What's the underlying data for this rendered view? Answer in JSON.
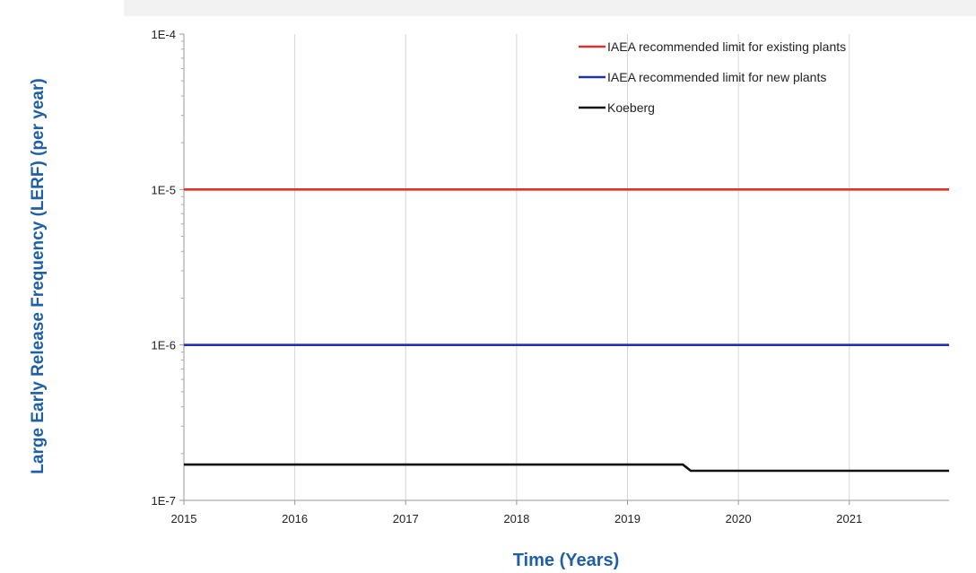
{
  "chart_data": {
    "type": "line",
    "ylabel": "Large Early Release Frequency (LERF)  (per year)",
    "xlabel": "Time (Years)",
    "y_scale": "log",
    "ylim": [
      1e-07,
      0.0001
    ],
    "xlim": [
      2015,
      2021.9
    ],
    "y_ticks": [
      {
        "value": 0.0001,
        "label": "1E-4"
      },
      {
        "value": 1e-05,
        "label": "1E-5"
      },
      {
        "value": 1e-06,
        "label": "1E-6"
      },
      {
        "value": 1e-07,
        "label": "1E-7"
      }
    ],
    "x_ticks": [
      {
        "value": 2015,
        "label": "2015"
      },
      {
        "value": 2016,
        "label": "2016"
      },
      {
        "value": 2017,
        "label": "2017"
      },
      {
        "value": 2018,
        "label": "2018"
      },
      {
        "value": 2019,
        "label": "2019"
      },
      {
        "value": 2020,
        "label": "2020"
      },
      {
        "value": 2021,
        "label": "2021"
      }
    ],
    "legend_position": "top-right",
    "grid": "vertical lines at year ticks",
    "series": [
      {
        "name": "IAEA recommended limit for existing plants",
        "color": "#e03030",
        "points": [
          [
            2015,
            1e-05
          ],
          [
            2021.9,
            1e-05
          ]
        ]
      },
      {
        "name": "IAEA recommended limit for new plants",
        "color": "#2233aa",
        "points": [
          [
            2015,
            1e-06
          ],
          [
            2021.9,
            1e-06
          ]
        ]
      },
      {
        "name": "Koeberg",
        "color": "#111111",
        "points": [
          [
            2015,
            1.7e-07
          ],
          [
            2019.5,
            1.7e-07
          ],
          [
            2019.57,
            1.55e-07
          ],
          [
            2021.9,
            1.55e-07
          ]
        ]
      }
    ]
  }
}
